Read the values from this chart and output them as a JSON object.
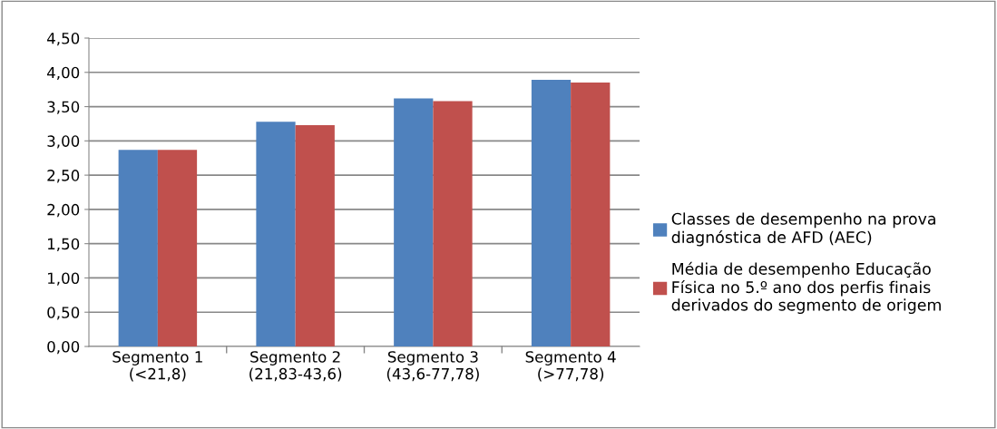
{
  "chart_data": {
    "type": "bar",
    "categories": [
      "Segmento 1\n(<21,8)",
      "Segmento 2\n(21,83-43,6)",
      "Segmento 3\n(43,6-77,78)",
      "Segmento 4\n(>77,78)"
    ],
    "series": [
      {
        "name": "Classes de desempenho na prova\ndiagnóstica de AFD (AEC)",
        "color": "#4f81bd",
        "values": [
          2.87,
          3.28,
          3.62,
          3.89
        ]
      },
      {
        "name": "Média de desempenho Educação\nFísica no 5.º ano dos perfis finais\nderivados do segmento de origem",
        "color": "#c0504d",
        "values": [
          2.87,
          3.23,
          3.58,
          3.85
        ]
      }
    ],
    "ylim": [
      0,
      4.5
    ],
    "yticks": [
      {
        "value": 0,
        "label": "0,00"
      },
      {
        "value": 0.5,
        "label": "0,50"
      },
      {
        "value": 1,
        "label": "1,00"
      },
      {
        "value": 1.5,
        "label": "1,50"
      },
      {
        "value": 2,
        "label": "2,00"
      },
      {
        "value": 2.5,
        "label": "2,50"
      },
      {
        "value": 3,
        "label": "3,00"
      },
      {
        "value": 3.5,
        "label": "3,50"
      },
      {
        "value": 4,
        "label": "4,00"
      },
      {
        "value": 4.5,
        "label": "4,50"
      }
    ],
    "grid": "y",
    "legend": "right"
  }
}
